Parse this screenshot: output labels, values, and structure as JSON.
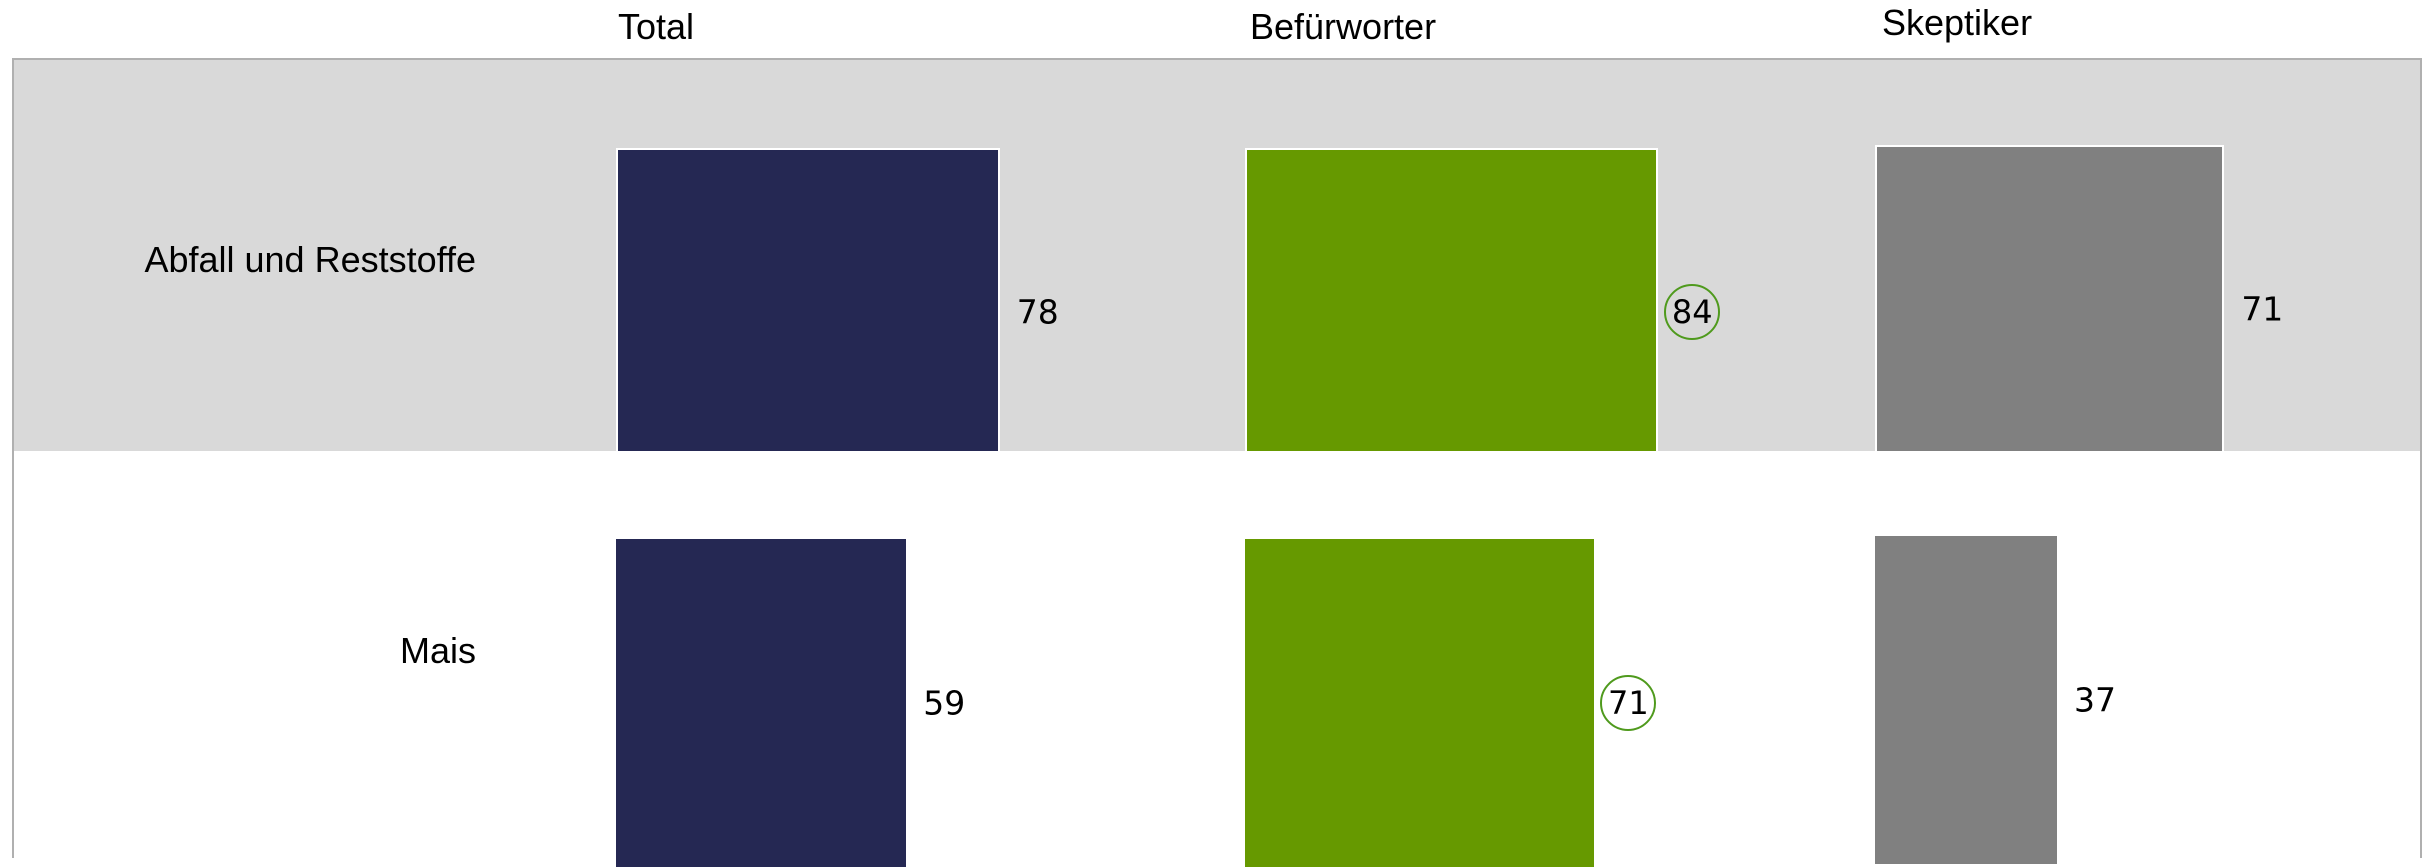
{
  "chart_data": {
    "type": "bar",
    "orientation": "horizontal",
    "columns": [
      "Total",
      "Befürworter",
      "Skeptiker"
    ],
    "categories": [
      "Abfall und Reststoffe",
      "Mais"
    ],
    "series": [
      {
        "name": "Total",
        "values": [
          78,
          59
        ],
        "color": "#252853"
      },
      {
        "name": "Befürworter",
        "values": [
          84,
          71
        ],
        "color": "#669900",
        "highlight_color": "#4f9a1d",
        "highlighted": [
          true,
          true
        ]
      },
      {
        "name": "Skeptiker",
        "values": [
          71,
          37
        ],
        "color": "#808080"
      }
    ],
    "row_colors": [
      "#d9d9d9",
      "#ffffff"
    ],
    "xlim": [
      0,
      100
    ],
    "grid": false,
    "legend": "none"
  }
}
